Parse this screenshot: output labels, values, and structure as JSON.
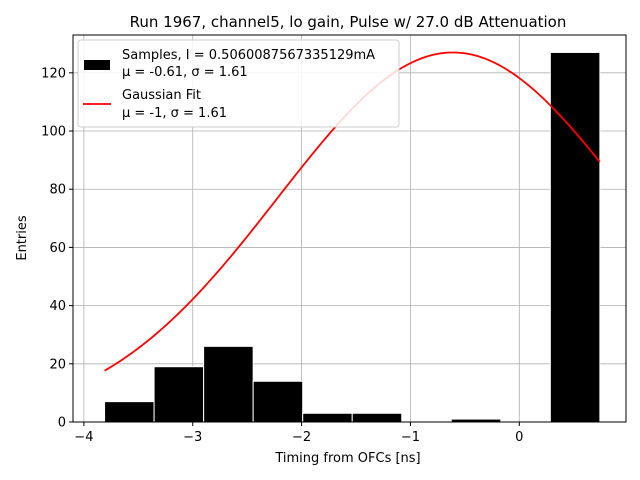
{
  "chart_data": {
    "type": "bar",
    "title": "Run 1967, channel5, lo gain, Pulse w/ 27.0 dB Attenuation",
    "xlabel": "Timing from OFCs [ns]",
    "ylabel": "Entries",
    "xlim": [
      -4.1,
      0.98
    ],
    "ylim": [
      0,
      133
    ],
    "xticks": [
      -4,
      -3,
      -2,
      -1,
      0
    ],
    "xtick_labels": [
      "−4",
      "−3",
      "−2",
      "−1",
      "0"
    ],
    "yticks": [
      0,
      20,
      40,
      60,
      80,
      100,
      120
    ],
    "ytick_labels": [
      "0",
      "20",
      "40",
      "60",
      "80",
      "100",
      "120"
    ],
    "grid": true,
    "legend_position": "top-left",
    "histogram": {
      "name_line1": "Samples, I = 0.5060087567335129mA",
      "name_line2": "μ = -0.61, σ = 1.61",
      "color": "#000000",
      "edge_color": "#ffffff",
      "bin_edges": [
        -3.81,
        -3.355,
        -2.9,
        -2.445,
        -1.99,
        -1.535,
        -1.08,
        -0.625,
        -0.17,
        0.285,
        0.74
      ],
      "counts": [
        7,
        19,
        26,
        14,
        3,
        3,
        0,
        1,
        0,
        127
      ]
    },
    "fit": {
      "name_line1": "Gaussian Fit",
      "name_line2": "μ = -1, σ = 1.61",
      "color": "#ff0000",
      "amplitude": 127,
      "mu": -0.61,
      "sigma": 1.61,
      "x_range": [
        -3.81,
        0.74
      ]
    }
  }
}
